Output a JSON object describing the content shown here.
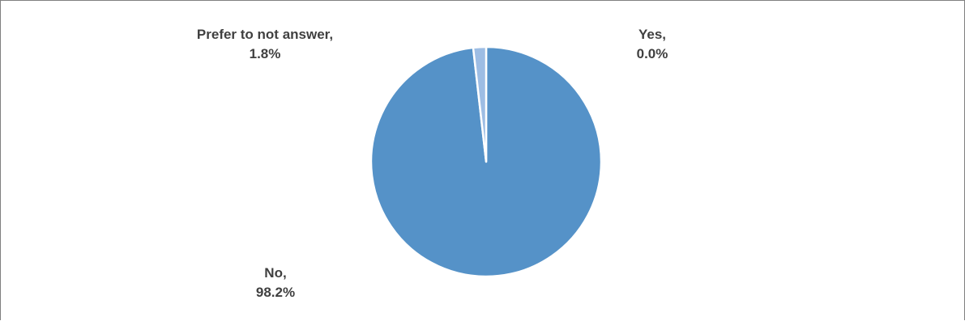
{
  "chart_data": {
    "type": "pie",
    "title": "",
    "slices": [
      {
        "label": "Yes",
        "value": 0.0,
        "display": "0.0%",
        "color": "#a9c4e6"
      },
      {
        "label": "No",
        "value": 98.2,
        "display": "98.2%",
        "color": "#5592c8"
      },
      {
        "label": "Prefer to not answer",
        "value": 1.8,
        "display": "1.8%",
        "color": "#9dbde4"
      }
    ],
    "data_labels": {
      "yes": {
        "name": "Yes,",
        "value": "0.0%"
      },
      "no": {
        "name": "No,",
        "value": "98.2%"
      },
      "prefer": {
        "name": "Prefer to not answer,",
        "value": "1.8%"
      }
    },
    "slice_border_color": "#ffffff",
    "legend": "none"
  }
}
